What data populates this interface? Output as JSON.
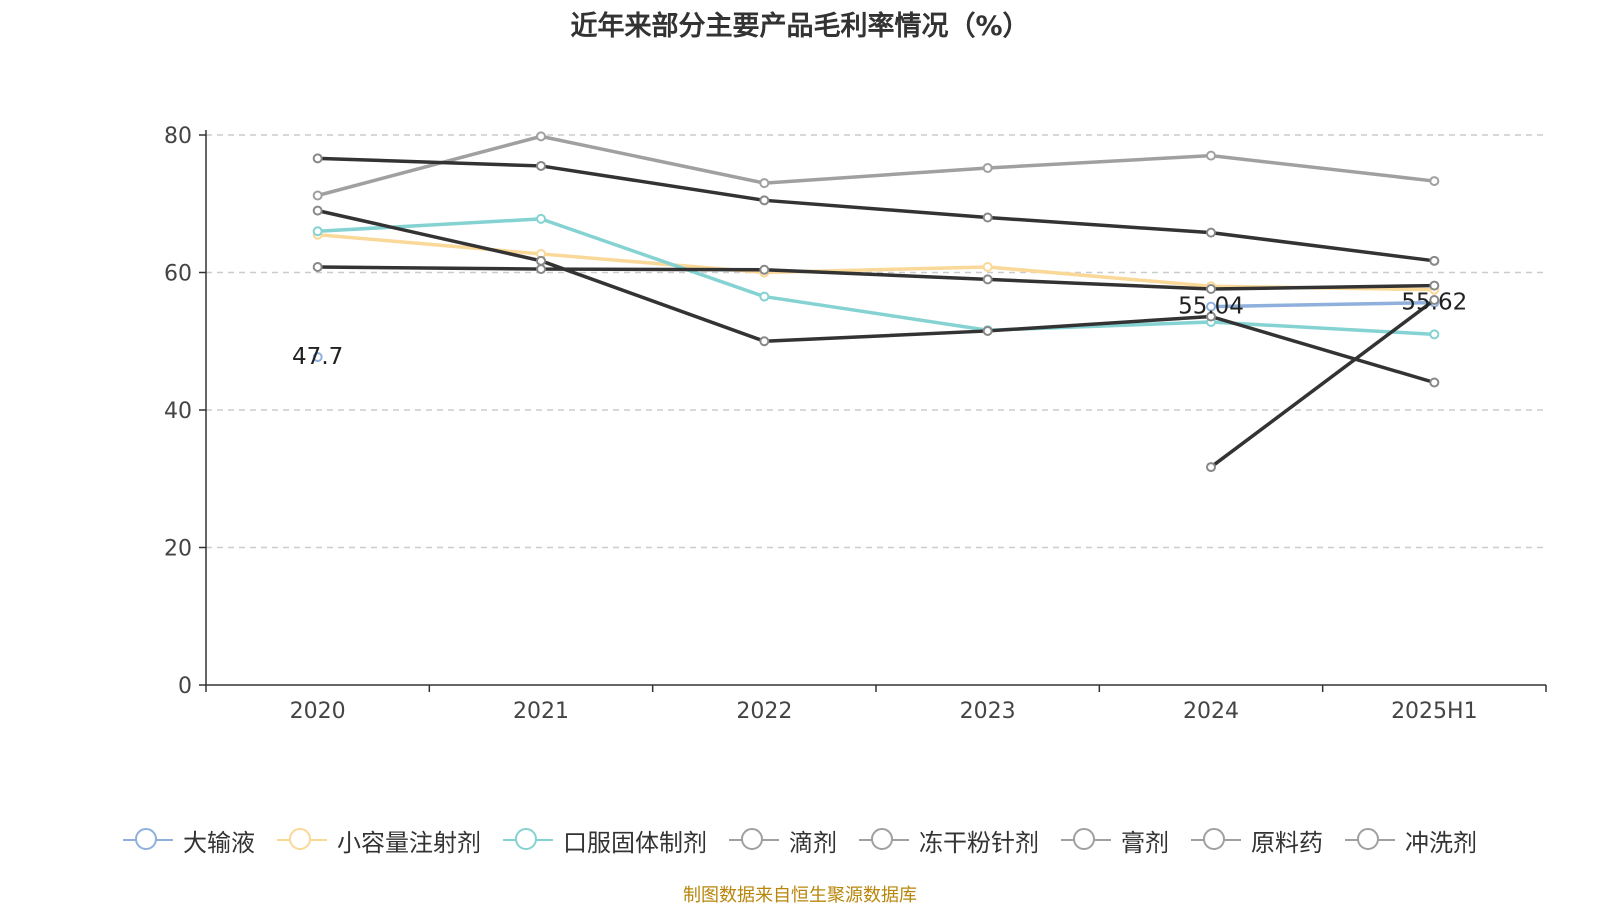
{
  "chart_data": {
    "type": "line",
    "title": "近年来部分主要产品毛利率情况（%）",
    "categories": [
      "2020",
      "2021",
      "2022",
      "2023",
      "2024",
      "2025H1"
    ],
    "ylim": [
      0,
      80
    ],
    "yticks": [
      0,
      20,
      40,
      60,
      80
    ],
    "grid": true,
    "legend_position": "bottom",
    "series": [
      {
        "name": "大输液",
        "color": "#8fb0dc",
        "values": [
          47.7,
          null,
          null,
          null,
          55.04,
          55.62
        ],
        "labels": [
          "47.7",
          null,
          null,
          null,
          "55.04",
          "55.62"
        ]
      },
      {
        "name": "小容量注射剂",
        "color": "#f9d898",
        "values": [
          65.5,
          62.7,
          60.0,
          60.8,
          58.0,
          57.5
        ]
      },
      {
        "name": "口服固体制剂",
        "color": "#85d2d2",
        "values": [
          66.0,
          67.8,
          56.5,
          51.6,
          52.8,
          51.0
        ]
      },
      {
        "name": "滴剂",
        "color": "#a0a0a0",
        "values": [
          71.2,
          79.8,
          73.0,
          75.2,
          77.0,
          73.3
        ]
      },
      {
        "name": "冻干粉针剂",
        "color": "#333333",
        "values": [
          76.6,
          75.5,
          70.5,
          68.0,
          65.8,
          61.7
        ]
      },
      {
        "name": "膏剂",
        "color": "#333333",
        "values": [
          69.0,
          61.7,
          50.0,
          51.5,
          53.6,
          44.0
        ]
      },
      {
        "name": "原料药",
        "color": "#333333",
        "values": [
          60.8,
          60.5,
          60.4,
          59.0,
          57.6,
          58.1
        ]
      },
      {
        "name": "冲洗剂",
        "color": "#333333",
        "values": [
          null,
          null,
          null,
          null,
          31.7,
          56.0
        ]
      }
    ]
  },
  "legend_items": [
    {
      "name": "大输液",
      "color": "#8fb0dc"
    },
    {
      "name": "小容量注射剂",
      "color": "#f9d898"
    },
    {
      "name": "口服固体制剂",
      "color": "#85d2d2"
    },
    {
      "name": "滴剂",
      "color": "#a0a0a0"
    },
    {
      "name": "冻干粉针剂",
      "color": "#a0a0a0"
    },
    {
      "name": "膏剂",
      "color": "#a0a0a0"
    },
    {
      "name": "原料药",
      "color": "#a0a0a0"
    },
    {
      "name": "冲洗剂",
      "color": "#a0a0a0"
    }
  ],
  "source_note": "制图数据来自恒生聚源数据库"
}
